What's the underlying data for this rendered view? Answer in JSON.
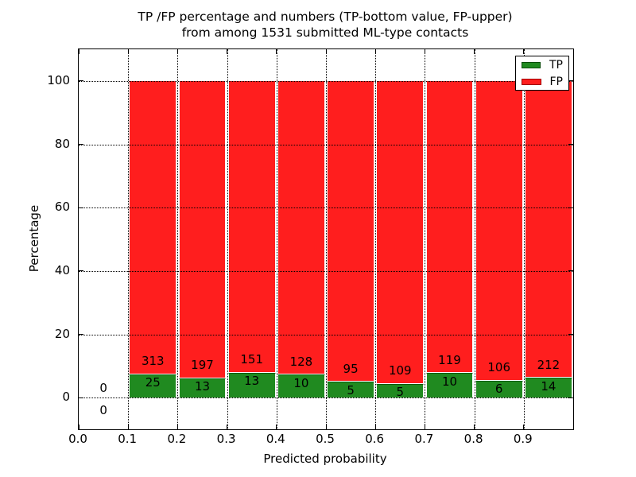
{
  "figure": {
    "title_line1": "TP /FP percentage and numbers (TP-bottom value, FP-upper)",
    "title_line2": "from among 1531 submitted ML-type contacts"
  },
  "legend": {
    "position": "upper right",
    "items": [
      {
        "label": "TP",
        "color": "#208a20",
        "edge_color": "#0a4d0a"
      },
      {
        "label": "FP",
        "color": "#ff1e1e",
        "edge_color": "#a00000"
      }
    ]
  },
  "chart_data": {
    "type": "bar",
    "stacked": true,
    "normalized_to_percent": true,
    "title": "TP /FP percentage and numbers (TP-bottom value, FP-upper)\nfrom among 1531 submitted ML-type contacts",
    "xlabel": "Predicted probability",
    "ylabel": "Percentage",
    "total_contacts": 1531,
    "xlim": [
      0.0,
      1.0
    ],
    "ylim": [
      -10,
      110
    ],
    "x_tick_labels": [
      "0.0",
      "0.1",
      "0.2",
      "0.3",
      "0.4",
      "0.5",
      "0.6",
      "0.7",
      "0.8",
      "0.9"
    ],
    "x_tick_values": [
      0.0,
      0.1,
      0.2,
      0.3,
      0.4,
      0.5,
      0.6,
      0.7,
      0.8,
      0.9
    ],
    "y_tick_values": [
      0,
      20,
      40,
      60,
      80,
      100
    ],
    "grid": true,
    "grid_style": "dotted",
    "bin_width": 0.1,
    "bins": [
      {
        "x_start": 0.0,
        "x_end": 0.1,
        "tp": 0,
        "fp": 0
      },
      {
        "x_start": 0.1,
        "x_end": 0.2,
        "tp": 25,
        "fp": 313
      },
      {
        "x_start": 0.2,
        "x_end": 0.3,
        "tp": 13,
        "fp": 197
      },
      {
        "x_start": 0.3,
        "x_end": 0.4,
        "tp": 13,
        "fp": 151
      },
      {
        "x_start": 0.4,
        "x_end": 0.5,
        "tp": 10,
        "fp": 128
      },
      {
        "x_start": 0.5,
        "x_end": 0.6,
        "tp": 5,
        "fp": 95
      },
      {
        "x_start": 0.6,
        "x_end": 0.7,
        "tp": 5,
        "fp": 109
      },
      {
        "x_start": 0.7,
        "x_end": 0.8,
        "tp": 10,
        "fp": 119
      },
      {
        "x_start": 0.8,
        "x_end": 0.9,
        "tp": 6,
        "fp": 106
      },
      {
        "x_start": 0.9,
        "x_end": 1.0,
        "tp": 14,
        "fp": 212
      }
    ],
    "series": [
      {
        "name": "TP",
        "color": "#208a20",
        "values": [
          0,
          25,
          13,
          13,
          10,
          5,
          5,
          10,
          6,
          14
        ]
      },
      {
        "name": "FP",
        "color": "#ff1e1e",
        "values": [
          0,
          313,
          197,
          151,
          128,
          95,
          109,
          119,
          106,
          212
        ]
      }
    ],
    "colors": {
      "tp_fill": "#208a20",
      "tp_edge": "#0a5a0a",
      "fp_fill": "#ff1e1e",
      "bar_separator": "#ffffff",
      "grid": "#000000",
      "spine": "#000000",
      "text": "#000000",
      "background": "#ffffff"
    }
  }
}
